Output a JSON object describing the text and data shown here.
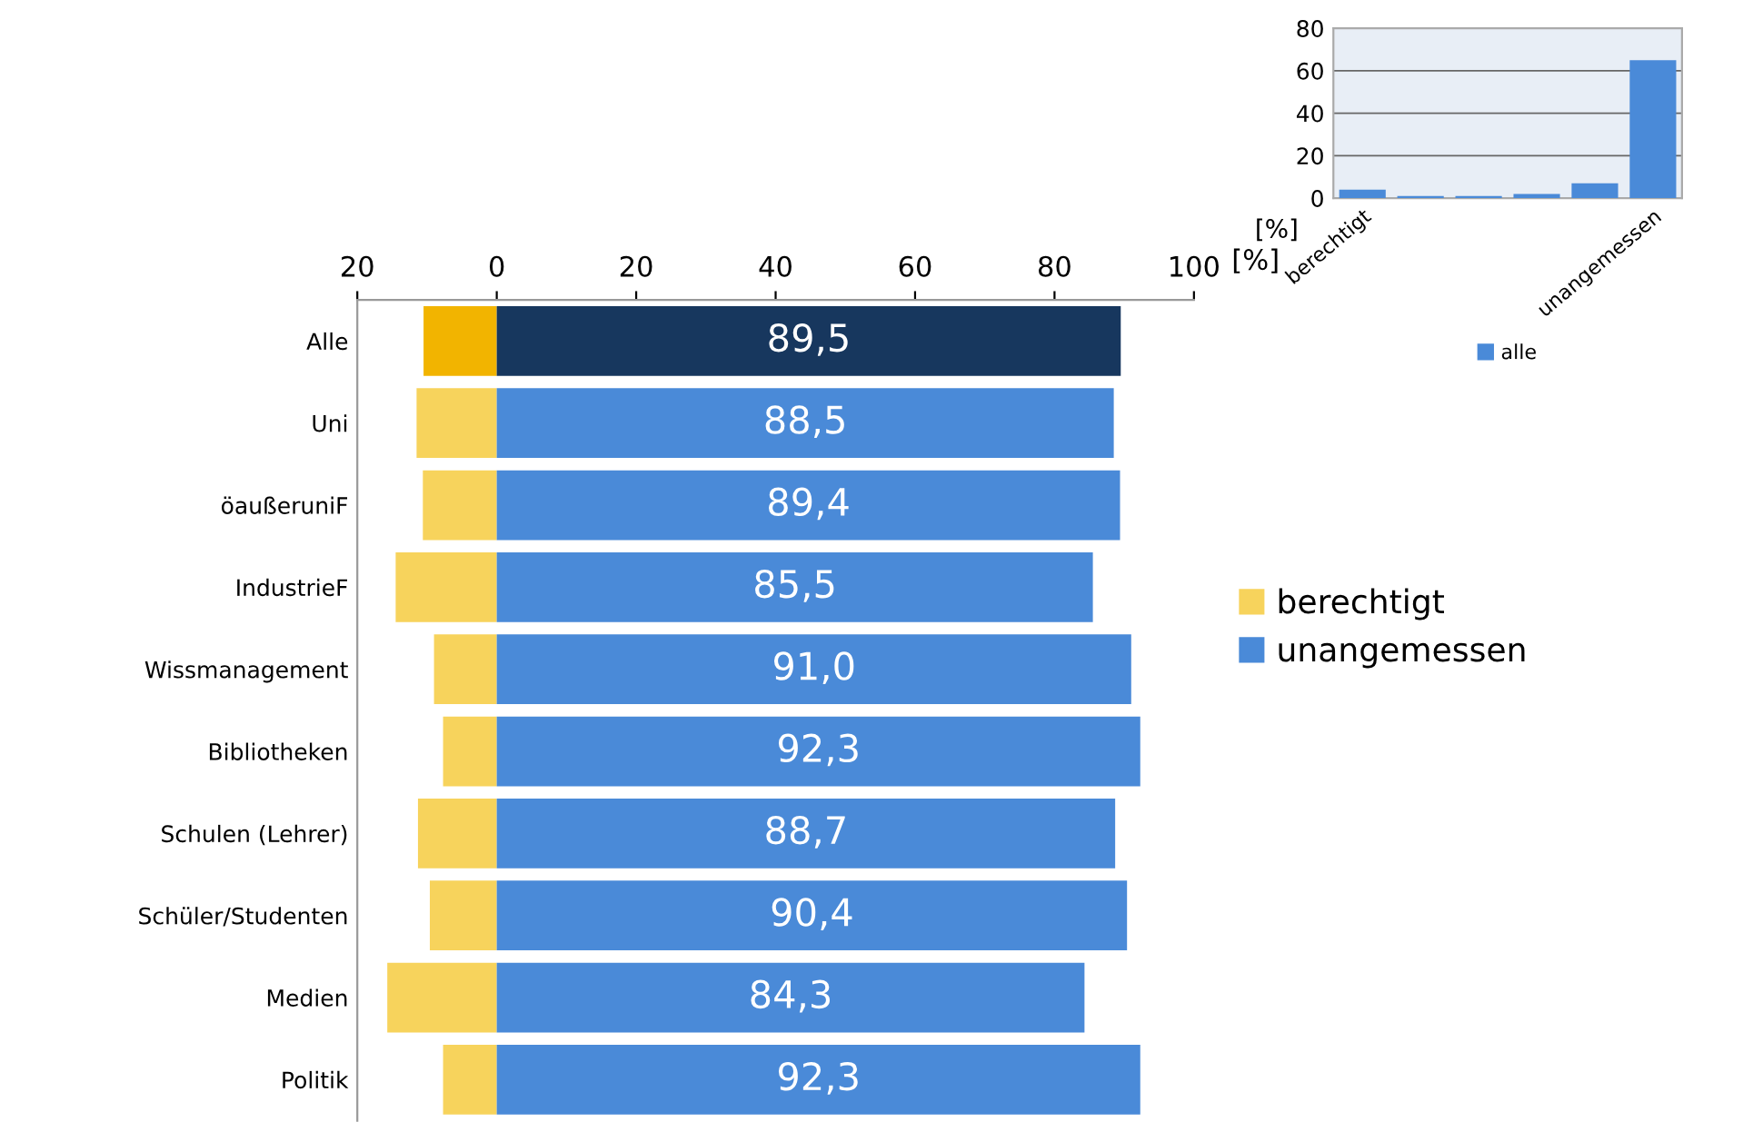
{
  "chart_data": [
    {
      "type": "bar",
      "orientation": "horizontal",
      "stacked": true,
      "xlabel": "[%]",
      "categories": [
        "Alle",
        "Uni",
        "öaußeruniF",
        "IndustrieF",
        "Wissmanagement",
        "Bibliotheken",
        "Schulen (Lehrer)",
        "Schüler/Studenten",
        "Medien",
        "Politik"
      ],
      "series": [
        {
          "name": "berechtigt",
          "color": "#f7d35c",
          "colors": [
            "#f2b400",
            "#f7d35c",
            "#f7d35c",
            "#f7d35c",
            "#f7d35c",
            "#f7d35c",
            "#f7d35c",
            "#f7d35c",
            "#f7d35c",
            "#f7d35c"
          ],
          "values": [
            -10.5,
            -11.5,
            -10.6,
            -14.5,
            -9.0,
            -7.7,
            -11.3,
            -9.6,
            -15.7,
            -7.7
          ]
        },
        {
          "name": "unangemessen",
          "color": "#4a8ad8",
          "colors": [
            "#17375e",
            "#4a8ad8",
            "#4a8ad8",
            "#4a8ad8",
            "#4a8ad8",
            "#4a8ad8",
            "#4a8ad8",
            "#4a8ad8",
            "#4a8ad8",
            "#4a8ad8"
          ],
          "values": [
            89.5,
            88.5,
            89.4,
            85.5,
            91.0,
            92.3,
            88.7,
            90.4,
            84.3,
            92.3
          ],
          "value_labels": [
            "89,5",
            "88,5",
            "89,4",
            "85,5",
            "91,0",
            "92,3",
            "88,7",
            "90,4",
            "84,3",
            "92,3"
          ]
        }
      ],
      "xlim": [
        -20,
        100
      ],
      "xticks": [
        {
          "value": -20,
          "label": "20"
        },
        0,
        20,
        40,
        60,
        80,
        100
      ],
      "grid": false,
      "legend": "right"
    },
    {
      "type": "bar",
      "ylabel": "[%]",
      "categories": [
        "berechtigt",
        null,
        null,
        null,
        null,
        "unangemessen"
      ],
      "series": [
        {
          "name": "alle",
          "color": "#4a8ad8",
          "values": [
            4,
            1,
            1,
            2,
            7,
            65
          ]
        }
      ],
      "ylim": [
        0,
        80
      ],
      "yticks": [
        0,
        20,
        40,
        60,
        80
      ],
      "grid": "y",
      "legend": "bottom"
    }
  ]
}
